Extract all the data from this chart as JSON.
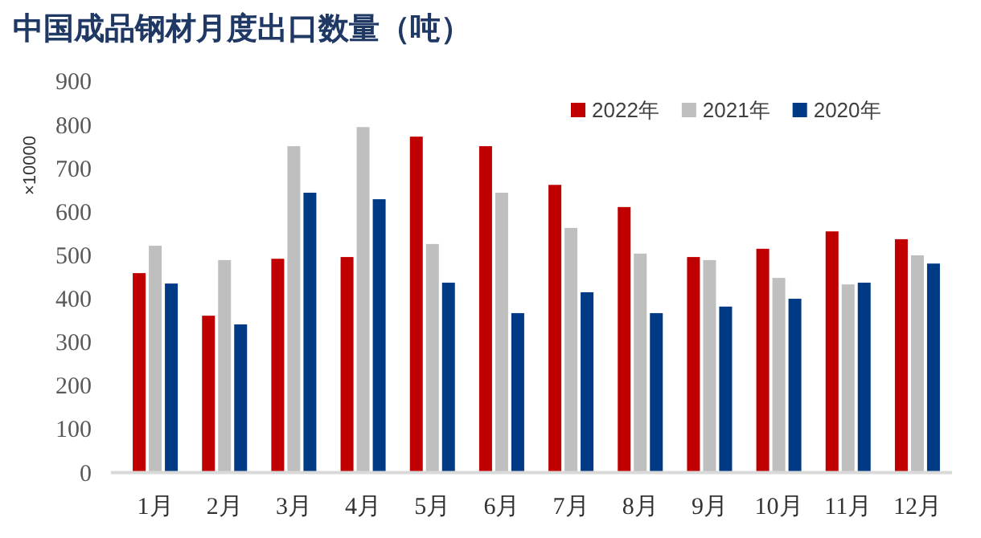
{
  "chart_data": {
    "type": "bar",
    "title": "中国成品钢材月度出口数量（吨）",
    "ylabel": "×10000",
    "categories": [
      "1月",
      "2月",
      "3月",
      "4月",
      "5月",
      "6月",
      "7月",
      "8月",
      "9月",
      "10月",
      "11月",
      "12月"
    ],
    "series": [
      {
        "name": "2022年",
        "color": "#c00000",
        "values": [
          459,
          361,
          492,
          496,
          773,
          751,
          662,
          611,
          496,
          515,
          555,
          537
        ]
      },
      {
        "name": "2021年",
        "color": "#bfbfbf",
        "values": [
          522,
          489,
          751,
          795,
          526,
          644,
          563,
          504,
          489,
          448,
          433,
          500
        ]
      },
      {
        "name": "2020年",
        "color": "#003a84",
        "values": [
          435,
          341,
          644,
          629,
          437,
          367,
          415,
          367,
          382,
          400,
          437,
          481
        ]
      }
    ],
    "ylim": [
      0,
      900
    ],
    "yticks": [
      0,
      100,
      200,
      300,
      400,
      500,
      600,
      700,
      800,
      900
    ],
    "grid": false,
    "legend": "top right"
  }
}
